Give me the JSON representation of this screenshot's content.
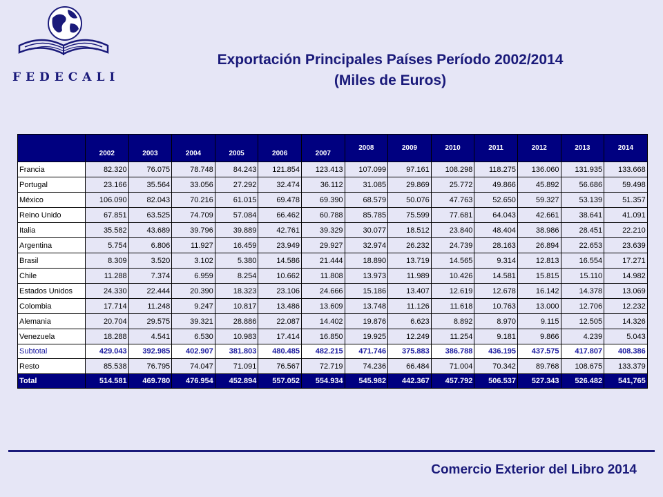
{
  "header": {
    "logo_text": "FEDECALI",
    "title_line1": "Exportación Principales Países Período 2002/2014",
    "title_line2": "(Miles de Euros)"
  },
  "table": {
    "columns": [
      "2002",
      "2003",
      "2004",
      "2005",
      "2006",
      "2007",
      "2008",
      "2009",
      "2010",
      "2011",
      "2012",
      "2013",
      "2014"
    ],
    "rows": [
      {
        "country": "Francia",
        "values": [
          "82.320",
          "76.075",
          "78.748",
          "84.243",
          "121.854",
          "123.413",
          "107.099",
          "97.161",
          "108.298",
          "118.275",
          "136.060",
          "131.935",
          "133.668"
        ]
      },
      {
        "country": "Portugal",
        "values": [
          "23.166",
          "35.564",
          "33.056",
          "27.292",
          "32.474",
          "36.112",
          "31.085",
          "29.869",
          "25.772",
          "49.866",
          "45.892",
          "56.686",
          "59.498"
        ]
      },
      {
        "country": "México",
        "values": [
          "106.090",
          "82.043",
          "70.216",
          "61.015",
          "69.478",
          "69.390",
          "68.579",
          "50.076",
          "47.763",
          "52.650",
          "59.327",
          "53.139",
          "51.357"
        ]
      },
      {
        "country": "Reino Unido",
        "values": [
          "67.851",
          "63.525",
          "74.709",
          "57.084",
          "66.462",
          "60.788",
          "85.785",
          "75.599",
          "77.681",
          "64.043",
          "42.661",
          "38.641",
          "41.091"
        ]
      },
      {
        "country": "Italia",
        "values": [
          "35.582",
          "43.689",
          "39.796",
          "39.889",
          "42.761",
          "39.329",
          "30.077",
          "18.512",
          "23.840",
          "48.404",
          "38.986",
          "28.451",
          "22.210"
        ]
      },
      {
        "country": "Argentina",
        "values": [
          "5.754",
          "6.806",
          "11.927",
          "16.459",
          "23.949",
          "29.927",
          "32.974",
          "26.232",
          "24.739",
          "28.163",
          "26.894",
          "22.653",
          "23.639"
        ]
      },
      {
        "country": "Brasil",
        "values": [
          "8.309",
          "3.520",
          "3.102",
          "5.380",
          "14.586",
          "21.444",
          "18.890",
          "13.719",
          "14.565",
          "9.314",
          "12.813",
          "16.554",
          "17.271"
        ]
      },
      {
        "country": "Chile",
        "values": [
          "11.288",
          "7.374",
          "6.959",
          "8.254",
          "10.662",
          "11.808",
          "13.973",
          "11.989",
          "10.426",
          "14.581",
          "15.815",
          "15.110",
          "14.982"
        ]
      },
      {
        "country": "Estados Unidos",
        "values": [
          "24.330",
          "22.444",
          "20.390",
          "18.323",
          "23.106",
          "24.666",
          "15.186",
          "13.407",
          "12.619",
          "12.678",
          "16.142",
          "14.378",
          "13.069"
        ]
      },
      {
        "country": "Colombia",
        "values": [
          "17.714",
          "11.248",
          "9.247",
          "10.817",
          "13.486",
          "13.609",
          "13.748",
          "11.126",
          "11.618",
          "10.763",
          "13.000",
          "12.706",
          "12.232"
        ]
      },
      {
        "country": "Alemania",
        "values": [
          "20.704",
          "29.575",
          "39.321",
          "28.886",
          "22.087",
          "14.402",
          "19.876",
          "6.623",
          "8.892",
          "8.970",
          "9.115",
          "12.505",
          "14.326"
        ]
      },
      {
        "country": "Venezuela",
        "values": [
          "18.288",
          "4.541",
          "6.530",
          "10.983",
          "17.414",
          "16.850",
          "19.925",
          "12.249",
          "11.254",
          "9.181",
          "9.866",
          "4.239",
          "5.043"
        ]
      }
    ],
    "subtotal": {
      "label": "Subtotal",
      "values": [
        "429.043",
        "392.985",
        "402.907",
        "381.803",
        "480.485",
        "482.215",
        "471.746",
        "375.883",
        "386.788",
        "436.195",
        "437.575",
        "417.807",
        "408.386"
      ]
    },
    "resto": {
      "label": "Resto",
      "values": [
        "85.538",
        "76.795",
        "74.047",
        "71.091",
        "76.567",
        "72.719",
        "74.236",
        "66.484",
        "71.004",
        "70.342",
        "89.768",
        "108.675",
        "133.379"
      ]
    },
    "total": {
      "label": "Total",
      "values": [
        "514.581",
        "469.780",
        "476.954",
        "452.894",
        "557.052",
        "554.934",
        "545.982",
        "442.367",
        "457.792",
        "506.537",
        "527.343",
        "526.482",
        "541,765"
      ]
    }
  },
  "footer": {
    "text": "Comercio Exterior del Libro 2014"
  },
  "colors": {
    "background": "#e6e6f6",
    "title": "#1a1a7a",
    "header_fill": "#000080",
    "subtotal_text": "#1a1aa0"
  }
}
